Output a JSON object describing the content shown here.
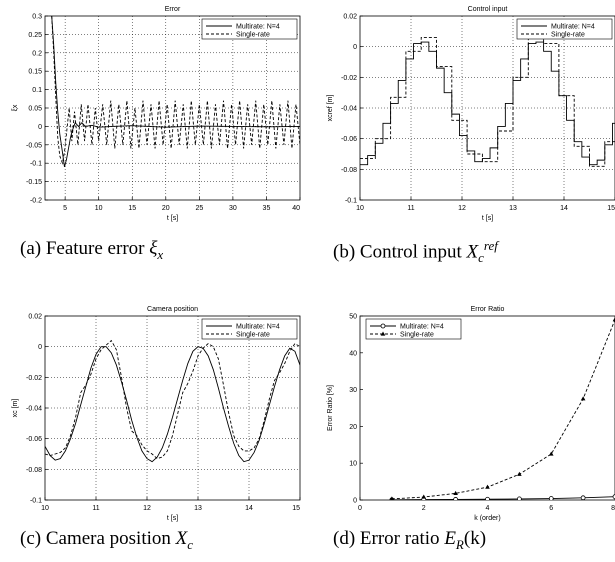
{
  "chart_data": [
    {
      "type": "line",
      "title": "Error",
      "xlabel": "t [s]",
      "ylabel": "ξx",
      "xlim": [
        2,
        40
      ],
      "ylim": [
        -0.2,
        0.3
      ],
      "xticks": [
        5,
        10,
        15,
        20,
        25,
        30,
        35,
        40
      ],
      "yticks": [
        -0.2,
        -0.15,
        -0.1,
        -0.05,
        0,
        0.05,
        0.1,
        0.15,
        0.2,
        0.25,
        0.3
      ],
      "grid": true,
      "legend_position": "top-right",
      "series": [
        {
          "name": "Multirate: N=4",
          "style": "solid",
          "x": [
            3.0,
            3.3,
            3.6,
            3.9,
            4.2,
            4.6,
            4.9,
            5.2,
            5.5,
            5.8,
            6.1,
            6.5,
            7.0,
            7.5,
            8.0,
            9.0,
            10.0,
            12.0,
            15.0,
            20.0,
            25.0,
            30.0,
            35.0,
            40.0
          ],
          "y": [
            0.3,
            0.22,
            0.12,
            0.04,
            -0.02,
            -0.07,
            -0.11,
            -0.09,
            -0.06,
            -0.03,
            -0.01,
            0.01,
            0.0,
            0.01,
            0.0,
            0.003,
            -0.002,
            0.0,
            0.002,
            -0.002,
            0.001,
            0.0,
            -0.001,
            0.0
          ]
        },
        {
          "name": "Single-rate",
          "style": "dashed",
          "x": [
            3.0,
            3.3,
            3.6,
            3.9,
            4.2,
            4.6,
            4.9,
            5.2,
            5.6,
            6.0,
            6.4,
            6.9,
            7.4,
            7.9,
            8.4,
            9.0,
            9.5,
            10.0,
            10.6,
            11.2,
            11.8,
            12.4,
            13.0,
            13.6,
            14.2,
            14.8,
            15.4,
            16.0,
            16.6,
            17.2,
            17.8,
            18.4,
            19.0,
            19.6,
            20.2,
            20.8,
            21.4,
            22.0,
            22.6,
            23.2,
            23.8,
            24.4,
            25.0,
            25.6,
            26.2,
            26.8,
            27.4,
            28.0,
            28.6,
            29.2,
            29.8,
            30.4,
            31.0,
            31.6,
            32.2,
            32.8,
            33.4,
            34.0,
            34.6,
            35.2,
            35.8,
            36.4,
            37.0,
            37.6,
            38.2,
            38.8,
            39.4,
            40.0
          ],
          "y": [
            0.3,
            0.2,
            0.08,
            -0.03,
            -0.08,
            -0.1,
            -0.07,
            -0.02,
            0.05,
            -0.04,
            0.04,
            -0.05,
            0.06,
            -0.04,
            0.06,
            -0.05,
            0.05,
            -0.04,
            0.06,
            -0.05,
            0.07,
            -0.06,
            0.06,
            -0.05,
            0.07,
            -0.06,
            0.05,
            -0.06,
            0.07,
            -0.05,
            0.06,
            -0.06,
            0.07,
            -0.05,
            0.06,
            -0.06,
            0.07,
            -0.05,
            0.06,
            -0.06,
            0.07,
            -0.05,
            0.06,
            -0.05,
            0.07,
            -0.06,
            0.06,
            -0.05,
            0.07,
            -0.06,
            0.06,
            -0.05,
            0.07,
            -0.06,
            0.06,
            -0.05,
            0.07,
            -0.06,
            0.06,
            -0.05,
            0.07,
            -0.06,
            0.06,
            -0.05,
            0.07,
            -0.06,
            0.06,
            -0.05
          ]
        }
      ]
    },
    {
      "type": "line",
      "title": "Control input",
      "xlabel": "t [s]",
      "ylabel": "xcref [m]",
      "xlim": [
        10,
        15
      ],
      "ylim": [
        -0.1,
        0.02
      ],
      "xticks": [
        10,
        11,
        12,
        13,
        14,
        15
      ],
      "yticks": [
        -0.1,
        -0.08,
        -0.06,
        -0.04,
        -0.02,
        0,
        0.02
      ],
      "grid": true,
      "legend_position": "top-right",
      "series": [
        {
          "name": "Multirate: N=4",
          "style": "solid",
          "x": [
            10.0,
            10.15,
            10.15,
            10.3,
            10.3,
            10.45,
            10.45,
            10.6,
            10.6,
            10.75,
            10.75,
            10.9,
            10.9,
            11.05,
            11.05,
            11.2,
            11.2,
            11.35,
            11.35,
            11.5,
            11.5,
            11.65,
            11.65,
            11.8,
            11.8,
            11.95,
            11.95,
            12.1,
            12.1,
            12.25,
            12.25,
            12.4,
            12.4,
            12.55,
            12.55,
            12.7,
            12.7,
            12.85,
            12.85,
            13.0,
            13.0,
            13.15,
            13.15,
            13.3,
            13.3,
            13.45,
            13.45,
            13.6,
            13.6,
            13.75,
            13.75,
            13.9,
            13.9,
            14.05,
            14.05,
            14.2,
            14.2,
            14.35,
            14.35,
            14.5,
            14.5,
            14.65,
            14.65,
            14.8,
            14.8,
            14.95,
            14.95,
            15.0
          ],
          "y": [
            -0.077,
            -0.077,
            -0.071,
            -0.071,
            -0.063,
            -0.063,
            -0.05,
            -0.05,
            -0.037,
            -0.037,
            -0.022,
            -0.022,
            -0.008,
            -0.008,
            0.002,
            0.002,
            0.003,
            0.003,
            -0.003,
            -0.003,
            -0.014,
            -0.014,
            -0.03,
            -0.03,
            -0.044,
            -0.044,
            -0.058,
            -0.058,
            -0.068,
            -0.068,
            -0.075,
            -0.075,
            -0.073,
            -0.073,
            -0.066,
            -0.066,
            -0.052,
            -0.052,
            -0.037,
            -0.037,
            -0.022,
            -0.022,
            -0.008,
            -0.008,
            0.002,
            0.002,
            0.003,
            0.003,
            -0.003,
            -0.003,
            -0.016,
            -0.016,
            -0.032,
            -0.032,
            -0.048,
            -0.048,
            -0.062,
            -0.062,
            -0.072,
            -0.072,
            -0.077,
            -0.077,
            -0.074,
            -0.074,
            -0.064,
            -0.064,
            -0.05,
            -0.05
          ]
        },
        {
          "name": "Single-rate",
          "style": "dashed",
          "x": [
            10.0,
            10.3,
            10.3,
            10.6,
            10.6,
            10.9,
            10.9,
            11.2,
            11.2,
            11.5,
            11.5,
            11.8,
            11.8,
            12.1,
            12.1,
            12.4,
            12.4,
            12.7,
            12.7,
            13.0,
            13.0,
            13.3,
            13.3,
            13.6,
            13.6,
            13.9,
            13.9,
            14.2,
            14.2,
            14.5,
            14.5,
            14.8,
            14.8,
            15.0
          ],
          "y": [
            -0.073,
            -0.073,
            -0.06,
            -0.06,
            -0.033,
            -0.033,
            -0.003,
            -0.003,
            0.006,
            0.006,
            -0.013,
            -0.013,
            -0.048,
            -0.048,
            -0.07,
            -0.07,
            -0.075,
            -0.075,
            -0.055,
            -0.055,
            -0.02,
            -0.02,
            0.006,
            0.006,
            0.002,
            0.002,
            -0.032,
            -0.032,
            -0.065,
            -0.065,
            -0.078,
            -0.078,
            -0.062,
            -0.062
          ]
        }
      ]
    },
    {
      "type": "line",
      "title": "Camera position",
      "xlabel": "t [s]",
      "ylabel": "xc [m]",
      "xlim": [
        10,
        15
      ],
      "ylim": [
        -0.1,
        0.02
      ],
      "xticks": [
        10,
        11,
        12,
        13,
        14,
        15
      ],
      "yticks": [
        -0.1,
        -0.08,
        -0.06,
        -0.04,
        -0.02,
        0,
        0.02
      ],
      "grid": true,
      "legend_position": "top-right",
      "series": [
        {
          "name": "Multirate: N=4",
          "style": "solid",
          "x": [
            10.0,
            10.1,
            10.2,
            10.3,
            10.4,
            10.5,
            10.6,
            10.7,
            10.8,
            10.9,
            11.0,
            11.1,
            11.2,
            11.3,
            11.4,
            11.5,
            11.6,
            11.7,
            11.8,
            11.9,
            12.0,
            12.1,
            12.2,
            12.3,
            12.4,
            12.5,
            12.6,
            12.7,
            12.8,
            12.9,
            13.0,
            13.1,
            13.2,
            13.3,
            13.4,
            13.5,
            13.6,
            13.7,
            13.8,
            13.9,
            14.0,
            14.1,
            14.2,
            14.3,
            14.4,
            14.5,
            14.6,
            14.7,
            14.8,
            14.9,
            15.0
          ],
          "y": [
            -0.065,
            -0.071,
            -0.074,
            -0.073,
            -0.068,
            -0.06,
            -0.05,
            -0.038,
            -0.026,
            -0.014,
            -0.005,
            0.0,
            0.0,
            -0.004,
            -0.012,
            -0.023,
            -0.035,
            -0.048,
            -0.059,
            -0.068,
            -0.073,
            -0.075,
            -0.072,
            -0.066,
            -0.057,
            -0.046,
            -0.034,
            -0.022,
            -0.011,
            -0.003,
            0.0,
            -0.001,
            -0.006,
            -0.015,
            -0.027,
            -0.04,
            -0.052,
            -0.063,
            -0.071,
            -0.075,
            -0.074,
            -0.069,
            -0.061,
            -0.05,
            -0.038,
            -0.026,
            -0.015,
            -0.006,
            -0.001,
            -0.003,
            -0.012
          ]
        },
        {
          "name": "Single-rate",
          "style": "dashed",
          "x": [
            10.0,
            10.1,
            10.2,
            10.3,
            10.4,
            10.5,
            10.6,
            10.7,
            10.8,
            10.9,
            11.0,
            11.1,
            11.2,
            11.3,
            11.4,
            11.5,
            11.6,
            11.7,
            11.8,
            11.9,
            12.0,
            12.1,
            12.2,
            12.3,
            12.4,
            12.5,
            12.6,
            12.7,
            12.8,
            12.9,
            13.0,
            13.1,
            13.2,
            13.3,
            13.4,
            13.5,
            13.6,
            13.7,
            13.8,
            13.9,
            14.0,
            14.1,
            14.2,
            14.3,
            14.4,
            14.5,
            14.6,
            14.7,
            14.8,
            14.9,
            15.0
          ],
          "y": [
            -0.07,
            -0.071,
            -0.07,
            -0.069,
            -0.066,
            -0.058,
            -0.046,
            -0.03,
            -0.025,
            -0.018,
            -0.008,
            -0.002,
            0.001,
            0.004,
            -0.002,
            -0.02,
            -0.04,
            -0.055,
            -0.058,
            -0.064,
            -0.068,
            -0.07,
            -0.073,
            -0.072,
            -0.068,
            -0.058,
            -0.044,
            -0.03,
            -0.024,
            -0.016,
            -0.006,
            -0.001,
            0.002,
            0.0,
            -0.008,
            -0.025,
            -0.043,
            -0.058,
            -0.065,
            -0.068,
            -0.068,
            -0.066,
            -0.06,
            -0.048,
            -0.034,
            -0.022,
            -0.017,
            -0.011,
            -0.003,
            0.002,
            0.0
          ]
        }
      ]
    },
    {
      "type": "line",
      "title": "Error Ratio",
      "xlabel": "k (order)",
      "ylabel": "Error Ratio [%]",
      "xlim": [
        0,
        8
      ],
      "ylim": [
        0,
        50
      ],
      "xticks": [
        0,
        2,
        4,
        6,
        8
      ],
      "yticks": [
        0,
        10,
        20,
        30,
        40,
        50
      ],
      "grid": false,
      "legend_position": "top-left",
      "series": [
        {
          "name": "Multirate: N=4",
          "style": "solid",
          "marker": "circle",
          "x": [
            1,
            2,
            3,
            4,
            5,
            6,
            7,
            8
          ],
          "y": [
            0.05,
            0.1,
            0.15,
            0.2,
            0.3,
            0.4,
            0.6,
            0.9
          ]
        },
        {
          "name": "Single-rate",
          "style": "dashed",
          "marker": "triangle",
          "x": [
            1,
            2,
            3,
            4,
            5,
            6,
            7,
            8
          ],
          "y": [
            0.3,
            0.8,
            1.8,
            3.5,
            7.0,
            12.5,
            27.5,
            49.0
          ]
        }
      ]
    }
  ],
  "captions": {
    "a": {
      "text": "(a) Feature error ",
      "sym": "ξ",
      "sub": "x"
    },
    "b": {
      "text": "(b) Control input ",
      "sym": "X",
      "sub": "c",
      "sup": "ref"
    },
    "c": {
      "text": "(c) Camera position ",
      "sym": "X",
      "sub": "c"
    },
    "d": {
      "text": "(d) Error ratio ",
      "sym": "E",
      "sub": "R",
      "tail": "(k)"
    }
  },
  "colors": {
    "axes": "#000000",
    "grid": "#000000",
    "line": "#000000",
    "background": "#ffffff"
  }
}
